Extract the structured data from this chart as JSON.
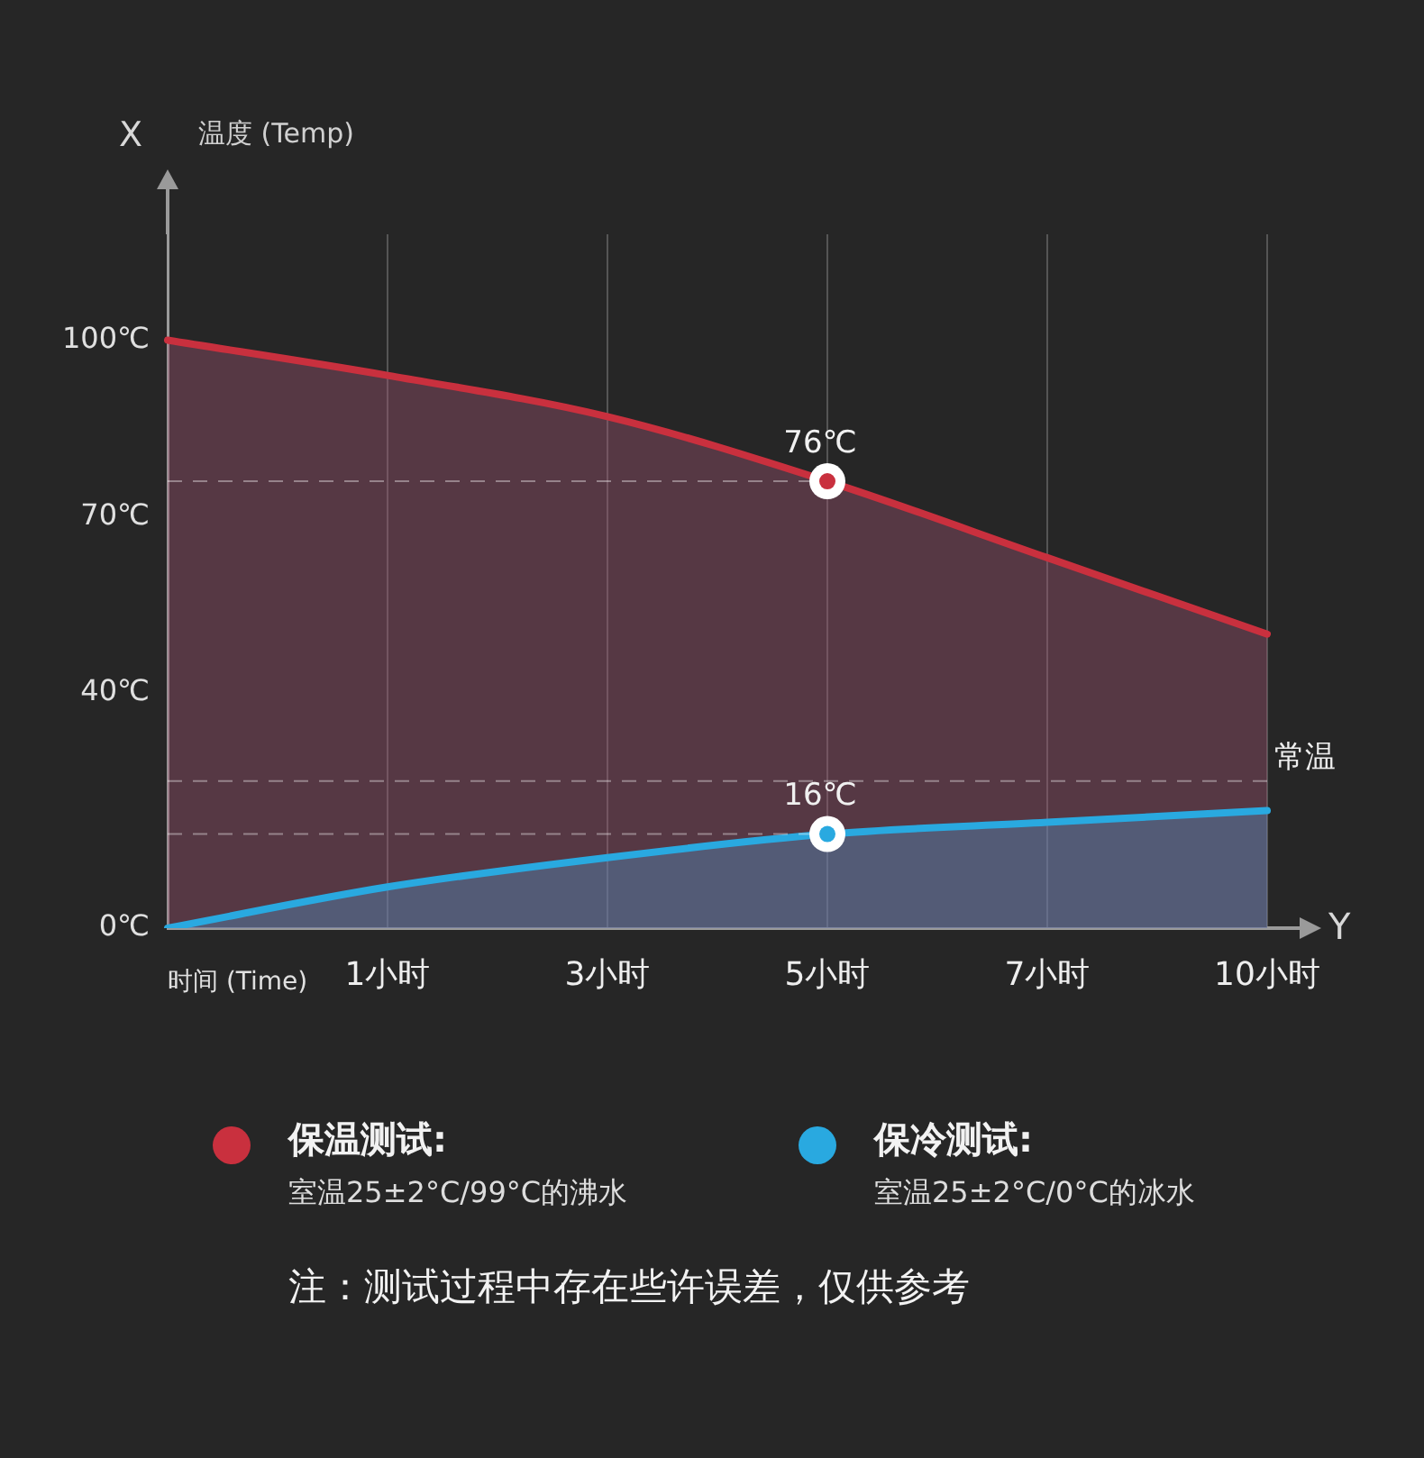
{
  "chart_data": {
    "type": "area",
    "ylabel": "温度 (Temp)",
    "xlabel": "时间 (Time)",
    "categories": [
      null,
      "1小时",
      "3小时",
      "5小时",
      "7小时",
      "10小时"
    ],
    "series": [
      {
        "name": "保温测试:",
        "color": "#c9303e",
        "values": [
          100,
          94,
          87,
          76,
          63,
          50
        ]
      },
      {
        "name": "保冷测试:",
        "color": "#29a9e0",
        "values": [
          0,
          7,
          12,
          16,
          18,
          20
        ]
      }
    ],
    "ylim": [
      0,
      118
    ],
    "yticks": [
      {
        "value": 0,
        "label": "0℃"
      },
      {
        "value": 40,
        "label": "40℃"
      },
      {
        "value": 70,
        "label": "70℃"
      },
      {
        "value": 100,
        "label": "100℃"
      }
    ],
    "ref_lines": [
      {
        "axis": "y",
        "value": 25,
        "label": "常温",
        "line_style": "dashed"
      }
    ],
    "annotations": [
      "X",
      "Y",
      "室温25±2°C/99°C的沸水",
      "室温25±2°C/0°C的冰水",
      "注：测试过程中存在些许误差，仅供参考",
      {
        "text": "76℃",
        "x": "5小时",
        "y": 76
      },
      {
        "text": "16℃",
        "x": "5小时",
        "y": 16
      }
    ],
    "grid": "x",
    "legend": "bottom"
  }
}
